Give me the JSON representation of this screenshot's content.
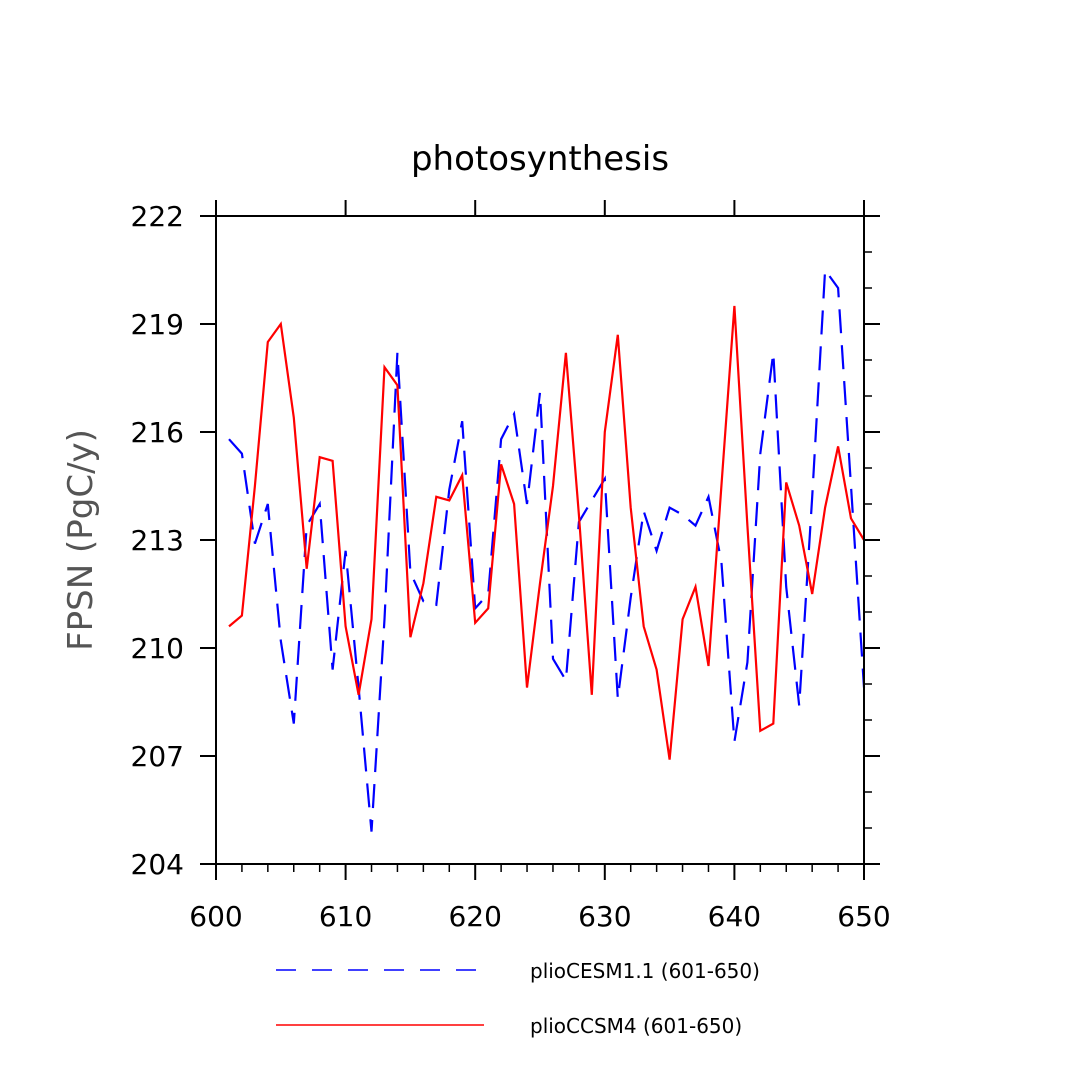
{
  "chart_data": {
    "type": "line",
    "title": "photosynthesis",
    "xlabel": "",
    "ylabel": "FPSN  (PgC/y)",
    "xlim": [
      600,
      650
    ],
    "ylim": [
      204,
      222
    ],
    "xticks": [
      600,
      610,
      620,
      630,
      640,
      650
    ],
    "yticks": [
      204,
      207,
      210,
      213,
      216,
      219,
      222
    ],
    "grid": false,
    "legend_position": "bottom",
    "series": [
      {
        "name": "plioCESM1.1 (601-650)",
        "color": "#0000ff",
        "style": "dashed",
        "x": [
          601,
          602,
          603,
          604,
          605,
          606,
          607,
          608,
          609,
          610,
          611,
          612,
          613,
          614,
          615,
          616,
          617,
          618,
          619,
          620,
          621,
          622,
          623,
          624,
          625,
          626,
          627,
          628,
          629,
          630,
          631,
          632,
          633,
          634,
          635,
          636,
          637,
          638,
          639,
          640,
          641,
          642,
          643,
          644,
          645,
          646,
          647,
          648,
          649,
          650
        ],
        "values": [
          215.8,
          215.4,
          212.9,
          214.0,
          210.2,
          207.9,
          213.4,
          214.0,
          209.4,
          212.7,
          208.9,
          204.9,
          210.8,
          218.2,
          212.1,
          211.3,
          211.2,
          214.4,
          216.3,
          211.1,
          211.5,
          215.8,
          216.5,
          214.0,
          217.1,
          209.7,
          209.1,
          213.5,
          214.1,
          214.7,
          208.6,
          211.4,
          213.8,
          212.7,
          213.9,
          213.7,
          213.4,
          214.2,
          212.4,
          207.4,
          209.6,
          215.4,
          218.2,
          211.7,
          208.4,
          214.2,
          220.5,
          220.0,
          214.5,
          208.9
        ]
      },
      {
        "name": "plioCCSM4 (601-650)",
        "color": "#ff0000",
        "style": "solid",
        "x": [
          601,
          602,
          603,
          604,
          605,
          606,
          607,
          608,
          609,
          610,
          611,
          612,
          613,
          614,
          615,
          616,
          617,
          618,
          619,
          620,
          621,
          622,
          623,
          624,
          625,
          626,
          627,
          628,
          629,
          630,
          631,
          632,
          633,
          634,
          635,
          636,
          637,
          638,
          639,
          640,
          641,
          642,
          643,
          644,
          645,
          646,
          647,
          648,
          649,
          650
        ],
        "values": [
          210.6,
          210.9,
          214.5,
          218.5,
          219.0,
          216.4,
          212.2,
          215.3,
          215.2,
          210.6,
          208.7,
          210.8,
          217.8,
          217.3,
          210.3,
          211.8,
          214.2,
          214.1,
          214.8,
          210.7,
          211.1,
          215.1,
          214.0,
          208.9,
          211.8,
          214.5,
          218.2,
          213.7,
          208.7,
          216.0,
          218.7,
          213.9,
          210.6,
          209.4,
          206.9,
          210.8,
          211.7,
          209.5,
          214.5,
          219.5,
          213.4,
          207.7,
          207.9,
          214.6,
          213.4,
          211.5,
          213.9,
          215.6,
          213.6,
          213.0
        ]
      }
    ]
  }
}
